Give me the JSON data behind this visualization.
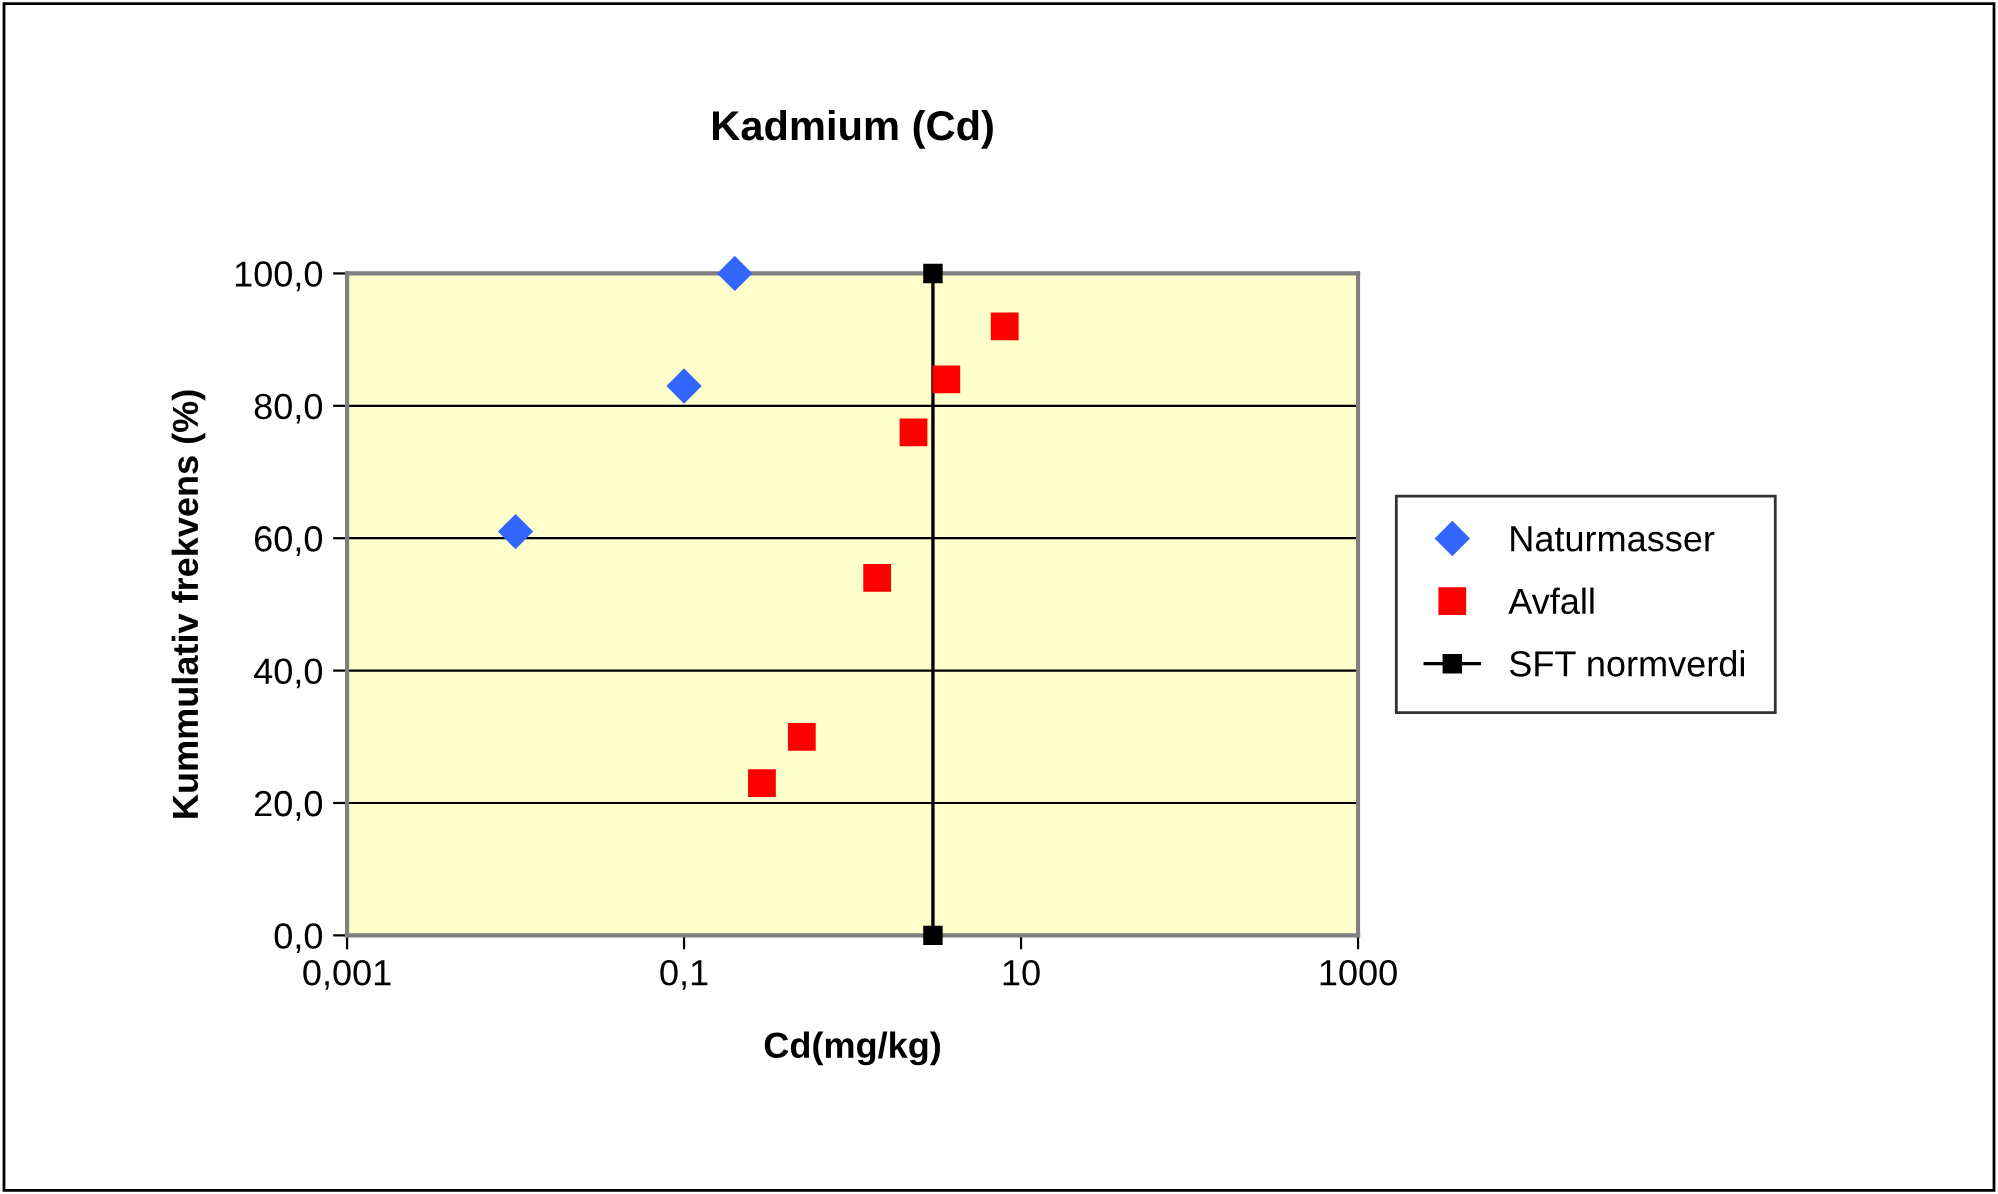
{
  "chart_data": {
    "type": "scatter",
    "title": "Kadmium (Cd)",
    "xlabel": "Cd(mg/kg)",
    "ylabel": "Kummulativ frekvens (%)",
    "log": "x",
    "grid": "y",
    "legend": "right",
    "xlim": [
      0.001,
      1000
    ],
    "xticks": [
      {
        "value": 0.001,
        "label": "0,001"
      },
      {
        "value": 0.1,
        "label": "0,1"
      },
      {
        "value": 10,
        "label": "10"
      },
      {
        "value": 1000,
        "label": "1000"
      }
    ],
    "ylim": [
      0,
      100
    ],
    "yticks": [
      {
        "value": 0,
        "label": "0,0"
      },
      {
        "value": 20,
        "label": "20,0"
      },
      {
        "value": 40,
        "label": "40,0"
      },
      {
        "value": 60,
        "label": "60,0"
      },
      {
        "value": 80,
        "label": "80,0"
      },
      {
        "value": 100,
        "label": "100,0"
      }
    ],
    "series": [
      {
        "name": "Naturmasser",
        "marker": "diamond",
        "color": "#3366ff",
        "x": [
          0.01,
          0.1,
          0.2
        ],
        "values": [
          61,
          83,
          100
        ]
      },
      {
        "name": "Avfall",
        "marker": "square",
        "color": "#ff0000",
        "x": [
          0.29,
          0.5,
          1.4,
          2.3,
          3.6,
          8
        ],
        "values": [
          23,
          30,
          54,
          76,
          84,
          92
        ]
      },
      {
        "name": "SFT normverdi",
        "type": "line",
        "marker": "square",
        "color": "#000000",
        "x": [
          3,
          3
        ],
        "values": [
          0,
          100
        ]
      }
    ]
  }
}
